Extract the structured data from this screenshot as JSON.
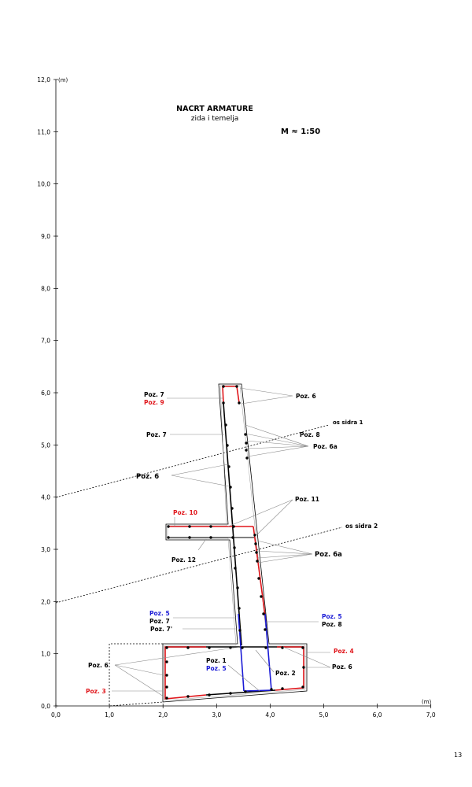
{
  "title": "NACRT ARMATURE",
  "subtitle": "zida i temelja",
  "scale": "M  ≈ 1:50",
  "page_number": "13",
  "axes": {
    "unit": "(m)",
    "x_ticks": [
      "0,0",
      "1,0",
      "2,0",
      "3,0",
      "4,0",
      "5,0",
      "6,0",
      "7,0"
    ],
    "y_ticks": [
      "0,0",
      "1,0",
      "2,0",
      "3,0",
      "4,0",
      "5,0",
      "6,0",
      "7,0",
      "8,0",
      "9,0",
      "10,0",
      "11,0",
      "12,0"
    ]
  },
  "anchor_lines": [
    "os sidra 1",
    "os sidra 2"
  ],
  "labels": {
    "poz7_top": "Poz. 7",
    "poz9": "Poz. 9",
    "poz6_top": "Poz. 6",
    "poz7_mid": "Poz. 7",
    "poz8_top": "Poz. 8",
    "poz6a_top": "Poz. 6a",
    "poz6_left": "Poz. 6",
    "poz10": "Poz. 10",
    "poz11": "Poz. 11",
    "poz12": "Poz. 12",
    "poz6a_mid": "Poz. 6a",
    "poz5_left": "Poz. 5",
    "poz7_low": "Poz. 7",
    "poz7p": "Poz. 7'",
    "poz5_right": "Poz. 5",
    "poz8_low": "Poz. 8",
    "poz4": "Poz. 4",
    "poz6_found_left": "Poz. 6",
    "poz1": "Poz. 1",
    "poz5_center": "Poz. 5",
    "poz2": "Poz. 2",
    "poz6_found_right": "Poz. 6",
    "poz3": "Poz. 3"
  },
  "colors": {
    "red": "#e0161b",
    "blue": "#1a1ad6"
  }
}
